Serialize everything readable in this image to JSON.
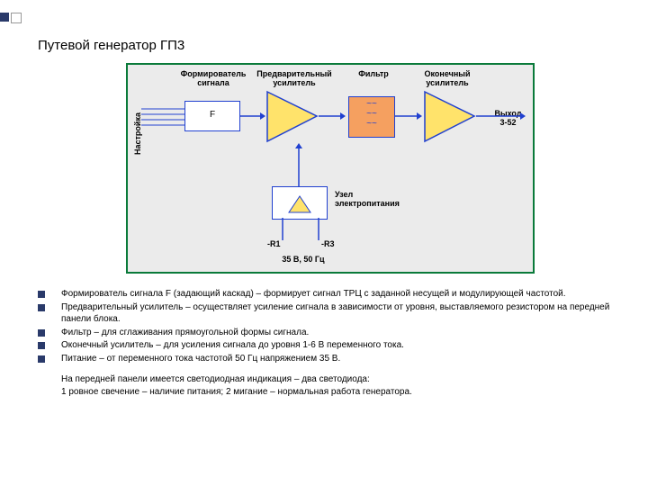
{
  "title": "Путевой генератор ГП3",
  "diagram": {
    "background": "#ebebeb",
    "border_color": "#0a7a3a",
    "tuning_label": "Настройка",
    "labels": {
      "shaper": "Формирователь\nсигнала",
      "preamp": "Предварительный\nусилитель",
      "filter": "Фильтр",
      "final": "Оконечный\nусилитель",
      "output": "Выход\n3-52",
      "power": "Узел\nэлектропитания",
      "r1": "-R1",
      "r2": "-R3",
      "bottom": "35 В, 50 Гц"
    },
    "f_block_label": "F",
    "filter_waves": "~~\n~~\n~~",
    "colors": {
      "block_border": "#2040d0",
      "amp_fill": "#ffe36b",
      "filter_fill": "#f5a060",
      "arrow": "#2040d0"
    }
  },
  "bullets": [
    "Формирователь сигнала F (задающий каскад) – формирует сигнал ТРЦ с заданной несущей и модулирующей частотой.",
    "Предварительный усилитель – осуществляет усиление сигнала в зависимости от уровня, выставляемого резистором на передней панели блока.",
    "Фильтр – для сглаживания прямоугольной формы сигнала.",
    "Оконечный усилитель – для усиления сигнала до уровня 1-6 В переменного тока.",
    "Питание – от переменного тока частотой 50 Гц напряжением 35 В."
  ],
  "footer_line1": "На передней панели имеется светодиодная индикация – два светодиода:",
  "footer_line2": "1 ровное свечение – наличие питания; 2 мигание – нормальная работа генератора."
}
